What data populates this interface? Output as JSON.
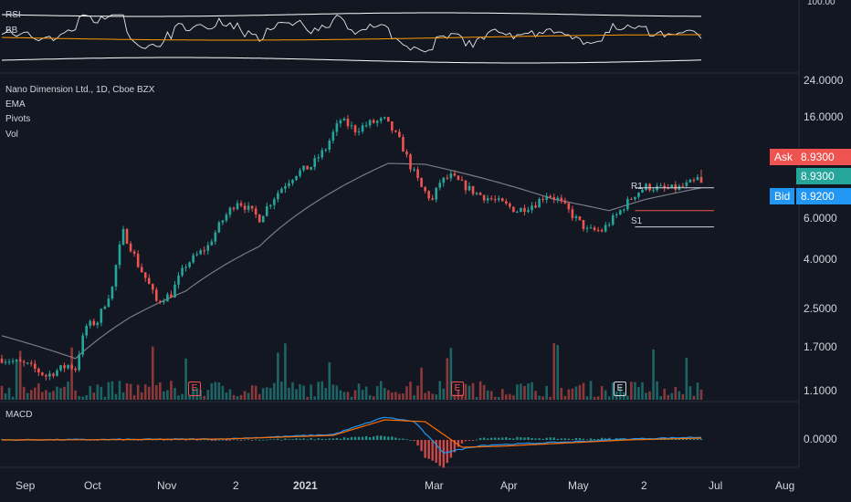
{
  "rsi_panel": {
    "label_rsi": "RSI",
    "label_bb": "BB",
    "axis_ticks": [
      "100.00"
    ]
  },
  "main_panel": {
    "legend": [
      "Nano Dimension Ltd., 1D, Cboe BZX",
      "EMA",
      "Pivots",
      "Vol"
    ],
    "y_ticks": [
      "24.0000",
      "16.0000",
      "8.9300",
      "8.9300",
      "8.9200",
      "6.0000",
      "4.0000",
      "2.5000",
      "1.7000",
      "1.1000"
    ],
    "ask_label": "Ask",
    "ask_value": "8.9300",
    "last_value": "8.9300",
    "bid_label": "Bid",
    "bid_value": "8.9200",
    "pivot_r1": "R1",
    "pivot_s1": "S1",
    "earnings_marker": "E"
  },
  "macd_panel": {
    "label": "MACD",
    "axis_ticks": [
      "0.0000"
    ]
  },
  "x_axis": [
    "Sep",
    "Oct",
    "Nov",
    "2",
    "2021",
    "Mar",
    "Apr",
    "May",
    "2",
    "Jul",
    "Aug"
  ],
  "colors": {
    "background": "#131722",
    "up": "#26a69a",
    "down": "#ef5350",
    "ema": "#787b86",
    "rsi": "#ffffff",
    "bb_basis": "#ff9800",
    "macd": "#2196f3",
    "signal": "#ff6d00",
    "ask": "#ef5350",
    "bid": "#2196f3",
    "last": "#26a69a"
  },
  "chart_data": [
    {
      "type": "candlestick",
      "title": "Nano Dimension Ltd., 1D, Cboe BZX",
      "scale": "log",
      "ylim": [
        1.05,
        25
      ],
      "x": [
        "Sep",
        "Oct",
        "Nov",
        "2",
        "2021",
        "Mar",
        "Apr",
        "May",
        "2",
        "Jul",
        "Aug"
      ],
      "anchors": [
        [
          0,
          1.6
        ],
        [
          7,
          1.5
        ],
        [
          12,
          1.35
        ],
        [
          18,
          1.5
        ],
        [
          20,
          1.45
        ],
        [
          23,
          2.2
        ],
        [
          26,
          2.3
        ],
        [
          30,
          3.2
        ],
        [
          33,
          5.5
        ],
        [
          37,
          4.0
        ],
        [
          42,
          2.8
        ],
        [
          46,
          3.0
        ],
        [
          50,
          4.0
        ],
        [
          56,
          4.8
        ],
        [
          60,
          6.2
        ],
        [
          64,
          7.5
        ],
        [
          70,
          6.3
        ],
        [
          76,
          8.5
        ],
        [
          80,
          9.8
        ],
        [
          84,
          10.5
        ],
        [
          88,
          12.5
        ],
        [
          92,
          16.5
        ],
        [
          96,
          15.0
        ],
        [
          100,
          16.0
        ],
        [
          104,
          16.5
        ],
        [
          108,
          13.5
        ],
        [
          111,
          10.5
        ],
        [
          114,
          8.5
        ],
        [
          117,
          7.5
        ],
        [
          119,
          9.0
        ],
        [
          122,
          9.5
        ],
        [
          125,
          8.8
        ],
        [
          128,
          8.2
        ],
        [
          131,
          7.8
        ],
        [
          135,
          7.4
        ],
        [
          140,
          6.8
        ],
        [
          145,
          7.3
        ],
        [
          148,
          8.0
        ],
        [
          151,
          7.6
        ],
        [
          155,
          6.5
        ],
        [
          159,
          5.6
        ],
        [
          163,
          5.6
        ],
        [
          167,
          6.5
        ],
        [
          172,
          8.0
        ],
        [
          175,
          8.6
        ],
        [
          180,
          8.4
        ],
        [
          184,
          8.5
        ],
        [
          188,
          9.0
        ],
        [
          190,
          9.6
        ]
      ],
      "ema_anchors": [
        [
          0,
          2.0
        ],
        [
          20,
          1.6
        ],
        [
          35,
          2.4
        ],
        [
          50,
          3.1
        ],
        [
          70,
          4.8
        ],
        [
          90,
          8.2
        ],
        [
          105,
          10.8
        ],
        [
          115,
          10.7
        ],
        [
          130,
          9.4
        ],
        [
          150,
          7.6
        ],
        [
          165,
          6.8
        ],
        [
          175,
          7.6
        ],
        [
          190,
          8.5
        ]
      ],
      "earnings_bars": [
        53,
        125,
        170
      ],
      "pivot_r1": 8.5,
      "pivot_s1": 5.8,
      "pivot_mid": 6.8
    },
    {
      "type": "line",
      "title": "RSI",
      "series": [
        {
          "name": "RSI"
        },
        {
          "name": "BB"
        }
      ],
      "ylim": [
        0,
        100
      ]
    },
    {
      "type": "bar",
      "title": "MACD",
      "series": [
        {
          "name": "MACD"
        }
      ],
      "ylim": [
        -1,
        1
      ]
    }
  ]
}
